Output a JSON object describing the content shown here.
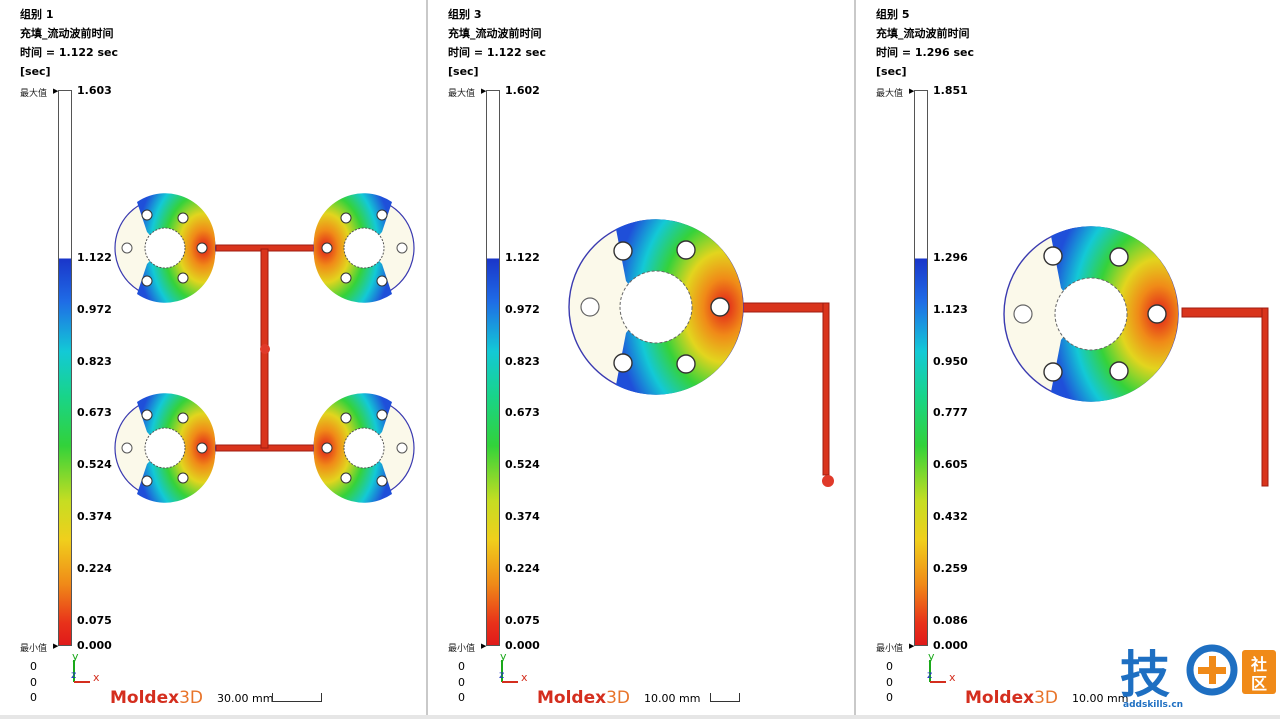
{
  "panels": [
    {
      "group": "组别 1",
      "result": "充填_流动波前时间",
      "time": "时间 = 1.122 sec",
      "unit": "[sec]",
      "max_label": "最大值",
      "min_label": "最小值",
      "max_value": "1.603",
      "ticks": [
        "1.122",
        "0.972",
        "0.823",
        "0.673",
        "0.524",
        "0.374",
        "0.224",
        "0.075",
        "0.000"
      ],
      "origin": [
        "0",
        "0",
        "0"
      ],
      "scale_text": "30.00 mm"
    },
    {
      "group": "组别 3",
      "result": "充填_流动波前时间",
      "time": "时间 = 1.122 sec",
      "unit": "[sec]",
      "max_label": "最大值",
      "min_label": "最小值",
      "max_value": "1.602",
      "ticks": [
        "1.122",
        "0.972",
        "0.823",
        "0.673",
        "0.524",
        "0.374",
        "0.224",
        "0.075",
        "0.000"
      ],
      "origin": [
        "0",
        "0",
        "0"
      ],
      "scale_text": "10.00 mm"
    },
    {
      "group": "组别 5",
      "result": "充填_流动波前时间",
      "time": "时间 = 1.296 sec",
      "unit": "[sec]",
      "max_label": "最大值",
      "min_label": "最小值",
      "max_value": "1.851",
      "ticks": [
        "1.296",
        "1.123",
        "0.950",
        "0.777",
        "0.605",
        "0.432",
        "0.259",
        "0.086",
        "0.000"
      ],
      "origin": [
        "0",
        "0",
        "0"
      ],
      "scale_text": "10.00 mm"
    }
  ],
  "axes": {
    "y": "y",
    "z": "z",
    "x": "x"
  },
  "logo": {
    "main": "Moldex",
    "suffix": "3D"
  },
  "watermark": {
    "chars": [
      "技",
      "社",
      "区"
    ],
    "url": "addskills.cn"
  },
  "colors": {
    "runner": "#d9341c",
    "scale_max": "#1a35c9",
    "scale_min": "#e01a1a",
    "logo": "#d42e1e",
    "watermark": "#1e6fc2"
  }
}
